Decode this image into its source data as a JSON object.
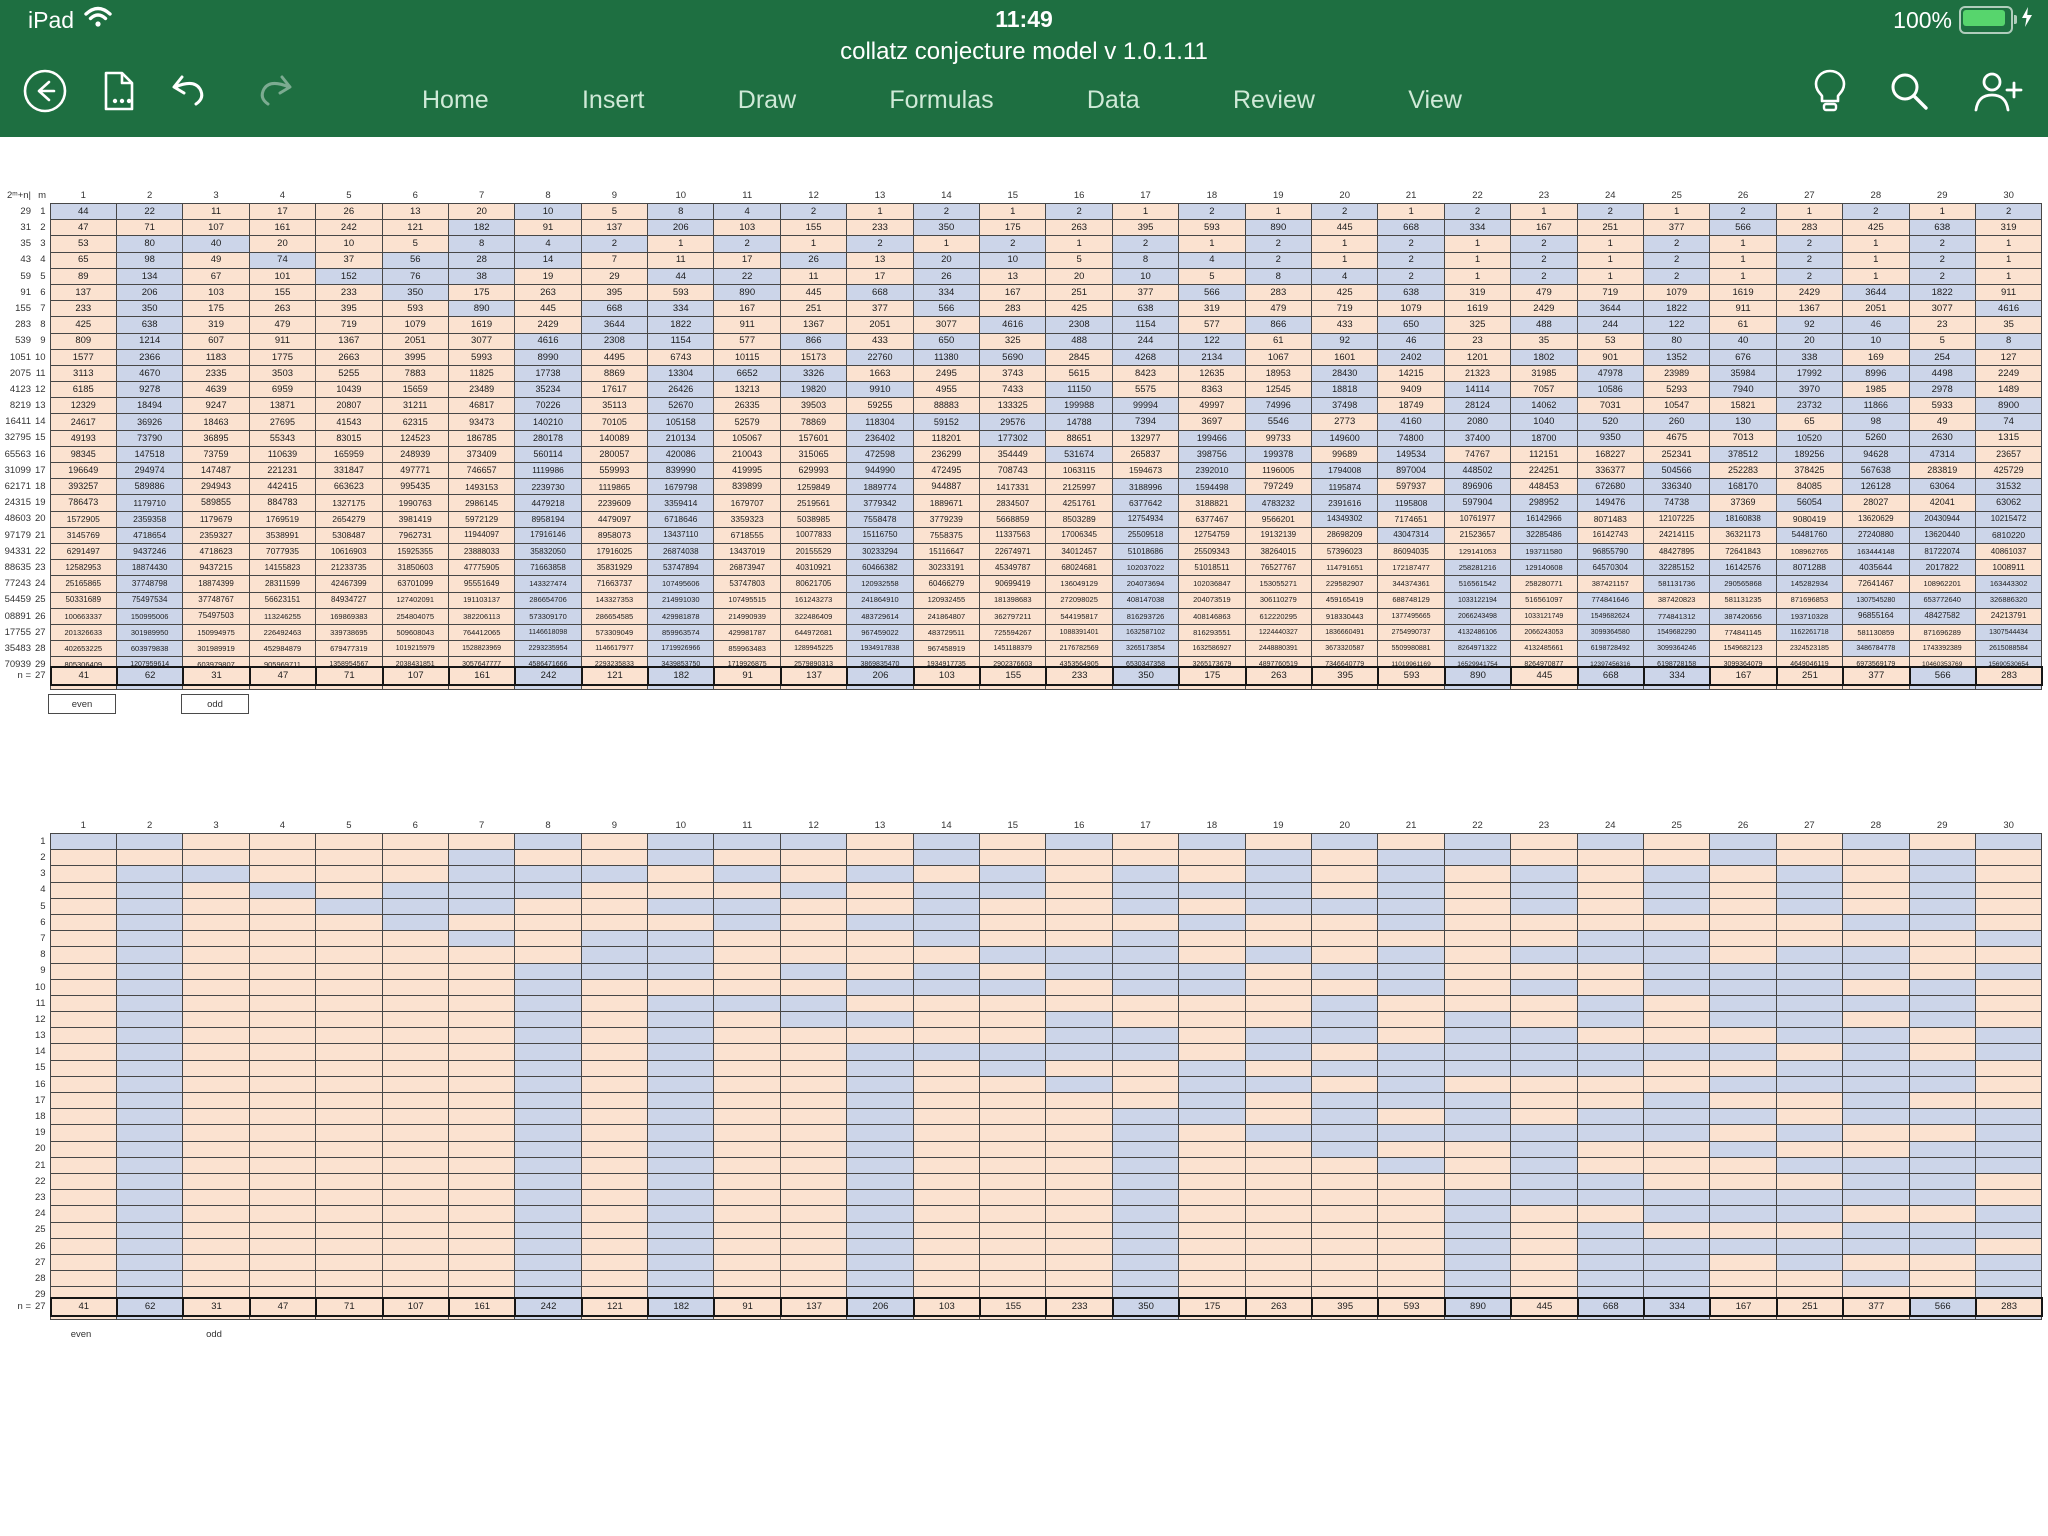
{
  "app": {
    "title": "collatz conjecture model v 1.0.1.11"
  },
  "status": {
    "device": "iPad",
    "time": "11:49",
    "battery": "100%"
  },
  "menus": [
    "Home",
    "Insert",
    "Draw",
    "Formulas",
    "Data",
    "Review",
    "View"
  ],
  "colors": {
    "chrome_green": "#1e6f41",
    "even_fill": "#ccd5e9",
    "odd_fill": "#fbe2d0",
    "grid_line": "#474747",
    "battery_green": "#57d56d"
  },
  "legend": {
    "even_label": "even",
    "odd_label": "odd"
  },
  "sheet": {
    "corner_header": "2ᵐ+n|",
    "m_header": "m",
    "column_headers": [
      1,
      2,
      3,
      4,
      5,
      6,
      7,
      8,
      9,
      10,
      11,
      12,
      13,
      14,
      15,
      16,
      17,
      18,
      19,
      20,
      21,
      22,
      23,
      24,
      25,
      26,
      27,
      28,
      29,
      30
    ],
    "rows": [
      {
        "label": "29",
        "values": [
          44,
          22,
          11,
          17,
          26,
          13,
          20,
          10,
          5,
          8,
          4,
          2,
          1,
          2,
          1,
          2,
          1,
          2,
          1,
          2,
          1,
          2,
          1,
          2,
          1,
          2,
          1,
          2,
          1,
          2
        ]
      },
      {
        "label": "31",
        "values": [
          47,
          71,
          107,
          161,
          242,
          121,
          182,
          91,
          137,
          206,
          103,
          155,
          233,
          350,
          175,
          263,
          395,
          593,
          890,
          445,
          668,
          334,
          167,
          251,
          377,
          566,
          283,
          425,
          638,
          319
        ]
      },
      {
        "label": "35",
        "values": [
          53,
          80,
          40,
          20,
          10,
          5,
          8,
          4,
          2,
          1,
          2,
          1,
          2,
          1,
          2,
          1,
          2,
          1,
          2,
          1,
          2,
          1,
          2,
          1,
          2,
          1,
          2,
          1,
          2,
          1
        ]
      },
      {
        "label": "43",
        "values": [
          65,
          98,
          49,
          74,
          37,
          56,
          28,
          14,
          7,
          11,
          17,
          26,
          13,
          20,
          10,
          5,
          8,
          4,
          2,
          1,
          2,
          1,
          2,
          1,
          2,
          1,
          2,
          1,
          2,
          1
        ]
      },
      {
        "label": "59",
        "values": [
          89,
          134,
          67,
          101,
          152,
          76,
          38,
          19,
          29,
          44,
          22,
          11,
          17,
          26,
          13,
          20,
          10,
          5,
          8,
          4,
          2,
          1,
          2,
          1,
          2,
          1,
          2,
          1,
          2,
          1
        ]
      },
      {
        "label": "91",
        "values": [
          137,
          206,
          103,
          155,
          233,
          350,
          175,
          263,
          395,
          593,
          890,
          445,
          668,
          334,
          167,
          251,
          377,
          566,
          283,
          425,
          638,
          319,
          479,
          719,
          1079,
          1619,
          2429,
          3644,
          1822,
          911
        ]
      },
      {
        "label": "155",
        "values": [
          233,
          350,
          175,
          263,
          395,
          593,
          890,
          445,
          668,
          334,
          167,
          251,
          377,
          566,
          283,
          425,
          638,
          319,
          479,
          719,
          1079,
          1619,
          2429,
          3644,
          1822,
          911,
          1367,
          2051,
          3077,
          4616
        ]
      },
      {
        "label": "283",
        "values": [
          425,
          638,
          319,
          479,
          719,
          1079,
          1619,
          2429,
          3644,
          1822,
          911,
          1367,
          2051,
          3077,
          4616,
          2308,
          1154,
          577,
          866,
          433,
          650,
          325,
          488,
          244,
          122,
          61,
          92,
          46,
          23,
          35
        ]
      },
      {
        "label": "539",
        "values": [
          809,
          1214,
          607,
          911,
          1367,
          2051,
          3077,
          4616,
          2308,
          1154,
          577,
          866,
          433,
          650,
          325,
          488,
          244,
          122,
          61,
          92,
          46,
          23,
          35,
          53,
          80,
          40,
          20,
          10,
          5,
          8
        ]
      },
      {
        "label": "1051",
        "values": [
          1577,
          2366,
          1183,
          1775,
          2663,
          3995,
          5993,
          8990,
          4495,
          6743,
          10115,
          15173,
          22760,
          11380,
          5690,
          2845,
          4268,
          2134,
          1067,
          1601,
          2402,
          1201,
          1802,
          901,
          1352,
          676,
          338,
          169,
          254,
          127
        ]
      },
      {
        "label": "2075",
        "values": [
          3113,
          4670,
          2335,
          3503,
          5255,
          7883,
          11825,
          17738,
          8869,
          13304,
          6652,
          3326,
          1663,
          2495,
          3743,
          5615,
          8423,
          12635,
          18953,
          28430,
          14215,
          21323,
          31985,
          47978,
          23989,
          35984,
          17992,
          8996,
          4498,
          2249
        ]
      },
      {
        "label": "4123",
        "values": [
          6185,
          9278,
          4639,
          6959,
          10439,
          15659,
          23489,
          35234,
          17617,
          26426,
          13213,
          19820,
          9910,
          4955,
          7433,
          11150,
          5575,
          8363,
          12545,
          18818,
          9409,
          14114,
          7057,
          10586,
          5293,
          7940,
          3970,
          1985,
          2978,
          1489
        ]
      },
      {
        "label": "8219",
        "values": [
          12329,
          18494,
          9247,
          13871,
          20807,
          31211,
          46817,
          70226,
          35113,
          52670,
          26335,
          39503,
          59255,
          88883,
          133325,
          199988,
          99994,
          49997,
          74996,
          37498,
          18749,
          28124,
          14062,
          7031,
          10547,
          15821,
          23732,
          11866,
          5933,
          8900
        ]
      },
      {
        "label": "16411",
        "values": [
          24617,
          36926,
          18463,
          27695,
          41543,
          62315,
          93473,
          140210,
          70105,
          105158,
          52579,
          78869,
          118304,
          59152,
          29576,
          14788,
          7394,
          3697,
          5546,
          2773,
          4160,
          2080,
          1040,
          520,
          260,
          130,
          65,
          98,
          49,
          74
        ]
      },
      {
        "label": "32795",
        "values": [
          49193,
          73790,
          36895,
          55343,
          83015,
          124523,
          186785,
          280178,
          140089,
          210134,
          105067,
          157601,
          236402,
          118201,
          177302,
          88651,
          132977,
          199466,
          99733,
          149600,
          74800,
          37400,
          18700,
          9350,
          4675,
          7013,
          10520,
          5260,
          2630,
          1315
        ]
      },
      {
        "label": "65563",
        "values": [
          98345,
          147518,
          73759,
          110639,
          165959,
          248939,
          373409,
          560114,
          280057,
          420086,
          210043,
          315065,
          472598,
          236299,
          354449,
          531674,
          265837,
          398756,
          199378,
          99689,
          149534,
          74767,
          112151,
          168227,
          252341,
          378512,
          189256,
          94628,
          47314,
          23657
        ]
      },
      {
        "label": "31099",
        "values": [
          196649,
          294974,
          147487,
          221231,
          331847,
          497771,
          746657,
          1119986,
          559993,
          839990,
          419995,
          629993,
          944990,
          472495,
          708743,
          1063115,
          1594673,
          2392010,
          1196005,
          1794008,
          897004,
          448502,
          224251,
          336377,
          504566,
          252283,
          378425,
          567638,
          283819,
          425729
        ]
      },
      {
        "label": "62171",
        "values": [
          393257,
          589886,
          294943,
          442415,
          663623,
          995435,
          1493153,
          2239730,
          1119865,
          1679798,
          839899,
          1259849,
          1889774,
          944887,
          1417331,
          2125997,
          3188996,
          1594498,
          797249,
          1195874,
          597937,
          896906,
          448453,
          672680,
          336340,
          168170,
          84085,
          126128,
          63064,
          31532
        ]
      },
      {
        "label": "24315",
        "values": [
          786473,
          1179710,
          589855,
          884783,
          1327175,
          1990763,
          2986145,
          4479218,
          2239609,
          3359414,
          1679707,
          2519561,
          3779342,
          1889671,
          2834507,
          4251761,
          6377642,
          3188821,
          4783232,
          2391616,
          1195808,
          597904,
          298952,
          149476,
          74738,
          37369,
          56054,
          28027,
          42041,
          63062
        ]
      },
      {
        "label": "48603",
        "values": [
          1572905,
          2359358,
          1179679,
          1769519,
          2654279,
          3981419,
          5972129,
          8958194,
          4479097,
          6718646,
          3359323,
          5038985,
          7558478,
          3779239,
          5668859,
          8503289,
          12754934,
          6377467,
          9566201,
          14349302,
          7174651,
          10761977,
          16142966,
          8071483,
          12107225,
          18160838,
          9080419,
          13620629,
          20430944,
          10215472
        ]
      },
      {
        "label": "97179",
        "values": [
          3145769,
          4718654,
          2359327,
          3538991,
          5308487,
          7962731,
          11944097,
          17916146,
          8958073,
          13437110,
          6718555,
          10077833,
          15116750,
          7558375,
          11337563,
          17006345,
          25509518,
          12754759,
          19132139,
          28698209,
          43047314,
          21523657,
          32285486,
          16142743,
          24214115,
          36321173,
          54481760,
          27240880,
          13620440,
          6810220
        ]
      },
      {
        "label": "94331",
        "values": [
          6291497,
          9437246,
          4718623,
          7077935,
          10616903,
          15925355,
          23888033,
          35832050,
          17916025,
          26874038,
          13437019,
          20155529,
          30233294,
          15116647,
          22674971,
          34012457,
          51018686,
          25509343,
          38264015,
          57396023,
          86094035,
          129141053,
          193711580,
          96855790,
          48427895,
          72641843,
          108962765,
          163444148,
          81722074,
          40861037
        ]
      },
      {
        "label": "88635",
        "values": [
          12582953,
          18874430,
          9437215,
          14155823,
          21233735,
          31850603,
          47775905,
          71663858,
          35831929,
          53747894,
          26873947,
          40310921,
          60466382,
          30233191,
          45349787,
          68024681,
          102037022,
          51018511,
          76527767,
          114791651,
          172187477,
          258281216,
          129140608,
          64570304,
          32285152,
          16142576,
          8071288,
          4035644,
          2017822,
          1008911
        ]
      },
      {
        "label": "77243",
        "values": [
          25165865,
          37748798,
          18874399,
          28311599,
          42467399,
          63701099,
          95551649,
          143327474,
          71663737,
          107495606,
          53747803,
          80621705,
          120932558,
          60466279,
          90699419,
          136049129,
          204073694,
          102036847,
          153055271,
          229582907,
          344374361,
          516561542,
          258280771,
          387421157,
          581131736,
          290565868,
          145282934,
          72641467,
          108962201,
          163443302
        ]
      },
      {
        "label": "54459",
        "values": [
          50331689,
          75497534,
          37748767,
          56623151,
          84934727,
          127402091,
          191103137,
          286654706,
          143327353,
          214991030,
          107495515,
          161243273,
          241864910,
          120932455,
          181398683,
          272098025,
          408147038,
          204073519,
          306110279,
          459165419,
          688748129,
          1033122194,
          516561097,
          774841646,
          387420823,
          581131235,
          871696853,
          1307545280,
          653772640,
          326886320
        ]
      },
      {
        "label": "08891",
        "values": [
          100663337,
          150995006,
          75497503,
          113246255,
          169869383,
          254804075,
          382206113,
          573309170,
          286654585,
          429981878,
          214990939,
          322486409,
          483729614,
          241864807,
          362797211,
          544195817,
          816293726,
          408146863,
          612220295,
          918330443,
          1377495665,
          2066243498,
          1033121749,
          1549682624,
          774841312,
          387420656,
          193710328,
          96855164,
          48427582,
          24213791
        ]
      },
      {
        "label": "17755",
        "values": [
          201326633,
          301989950,
          150994975,
          226492463,
          339738695,
          509608043,
          764412065,
          1146618098,
          573309049,
          859963574,
          429981787,
          644972681,
          967459022,
          483729511,
          725594267,
          1088391401,
          1632587102,
          816293551,
          1224440327,
          1836660491,
          2754990737,
          4132486106,
          2066243053,
          3099364580,
          1549682290,
          774841145,
          1162261718,
          581130859,
          871696289,
          1307544434
        ]
      },
      {
        "label": "35483",
        "values": [
          402653225,
          603979838,
          301989919,
          452984879,
          679477319,
          1019215979,
          1528823969,
          2293235954,
          1146617977,
          1719926966,
          859963483,
          1289945225,
          1934917838,
          967458919,
          1451188379,
          2176782569,
          3265173854,
          1632586927,
          2448880391,
          3673320587,
          5509980881,
          8264971322,
          4132485661,
          6198728492,
          3099364246,
          1549682123,
          2324523185,
          3486784778,
          1743392389,
          2615088584
        ]
      },
      {
        "label": "70939",
        "values": [
          805306409,
          1207959614,
          603979807,
          905969711,
          1358954567,
          2038431851,
          3057647777,
          4586471666,
          2293235833,
          3439853750,
          1719926875,
          2579890313,
          3869835470,
          1934917735,
          2902376603,
          4353564905,
          6530347358,
          3265173679,
          4897760519,
          7346640779,
          11019961169,
          16529941754,
          8264970877,
          12397456316,
          6198728158,
          3099364079,
          4649046119,
          6973569179,
          10460353769,
          15690530654
        ]
      },
      {
        "label": "41851",
        "values": [
          1610612777,
          2415919166,
          1207959583,
          1811939375,
          2717909063,
          4076863595,
          6115295393,
          9172943090,
          4586471545,
          6879707318,
          3439853659,
          5159780489,
          7739670734,
          3869835367,
          5804753051,
          8707129577,
          13060694366,
          6530347183,
          9795520775,
          14693281163,
          22039921745,
          33059882618,
          16529941309,
          24794911964,
          12397455982,
          6198727991,
          9298091987,
          13947137981,
          20920706972,
          10460353486
        ]
      }
    ],
    "odd_color_exceptions": [
      [
        1,
        5
      ],
      [
        1,
        7
      ],
      [
        2,
        5
      ],
      [
        3,
        4
      ],
      [
        3,
        5
      ],
      [
        5,
        16
      ]
    ],
    "n_row": {
      "prefix": "n =",
      "n": "27",
      "values": [
        41,
        62,
        31,
        47,
        71,
        107,
        161,
        242,
        121,
        182,
        91,
        137,
        206,
        103,
        155,
        233,
        350,
        175,
        263,
        395,
        593,
        890,
        445,
        668,
        334,
        167,
        251,
        377,
        566,
        283
      ]
    },
    "grid2_row_labels": [
      1,
      2,
      3,
      4,
      5,
      6,
      7,
      8,
      9,
      10,
      11,
      12,
      13,
      14,
      15,
      16,
      17,
      18,
      19,
      20,
      21,
      22,
      23,
      24,
      25,
      26,
      27,
      28,
      29,
      30
    ]
  }
}
